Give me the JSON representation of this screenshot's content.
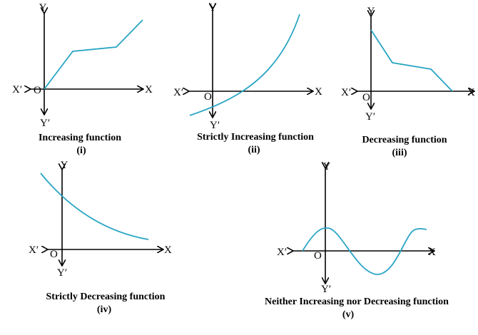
{
  "axis_labels": {
    "x": "X",
    "x_neg": "X′",
    "y": "Y",
    "y_neg": "Y′",
    "origin": "O"
  },
  "curve_color": "#2aa5c4",
  "panels": [
    {
      "caption": "Increasing function",
      "numeral": "(i)"
    },
    {
      "caption": "Strictly Increasing function",
      "numeral": "(ii)"
    },
    {
      "caption": "Decreasing function",
      "numeral": "(iii)"
    },
    {
      "caption": "Strictly Decreasing function",
      "numeral": "(iv)"
    },
    {
      "caption": "Neither Increasing nor Decreasing function",
      "numeral": "(v)"
    }
  ]
}
